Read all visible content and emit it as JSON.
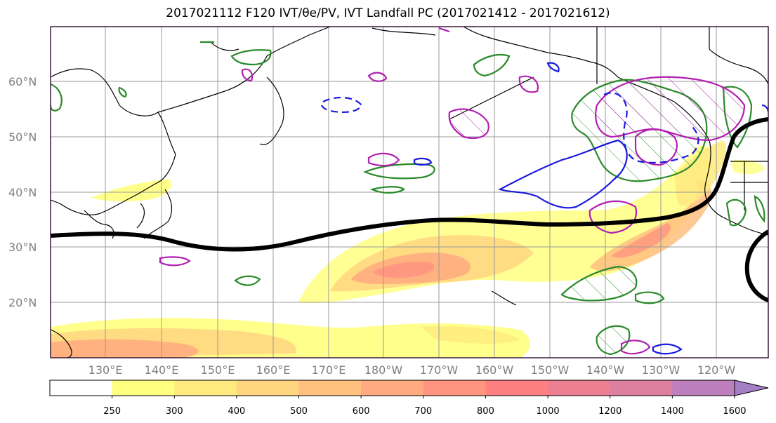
{
  "title": "2017021112 F120 IVT/θe/PV, IVT Landfall PC (2017021412 - 2017021612)",
  "map": {
    "lat_labels": [
      "60°N",
      "50°N",
      "40°N",
      "30°N",
      "20°N"
    ],
    "lon_labels": [
      "130°E",
      "140°E",
      "150°E",
      "160°E",
      "170°E",
      "180°W",
      "170°W",
      "160°W",
      "150°W",
      "140°W",
      "130°W",
      "120°W"
    ]
  },
  "colorbar": {
    "ticks": [
      "250",
      "300",
      "400",
      "500",
      "600",
      "700",
      "800",
      "1000",
      "1200",
      "1400",
      "1600"
    ],
    "colors": [
      "#ffffff",
      "#ffff80",
      "#ffea80",
      "#ffd580",
      "#ffc080",
      "#ffaa80",
      "#ff9580",
      "#ff8080",
      "#ee7f90",
      "#dd7f9f",
      "#be7fbe",
      "#a57fc5"
    ]
  }
}
